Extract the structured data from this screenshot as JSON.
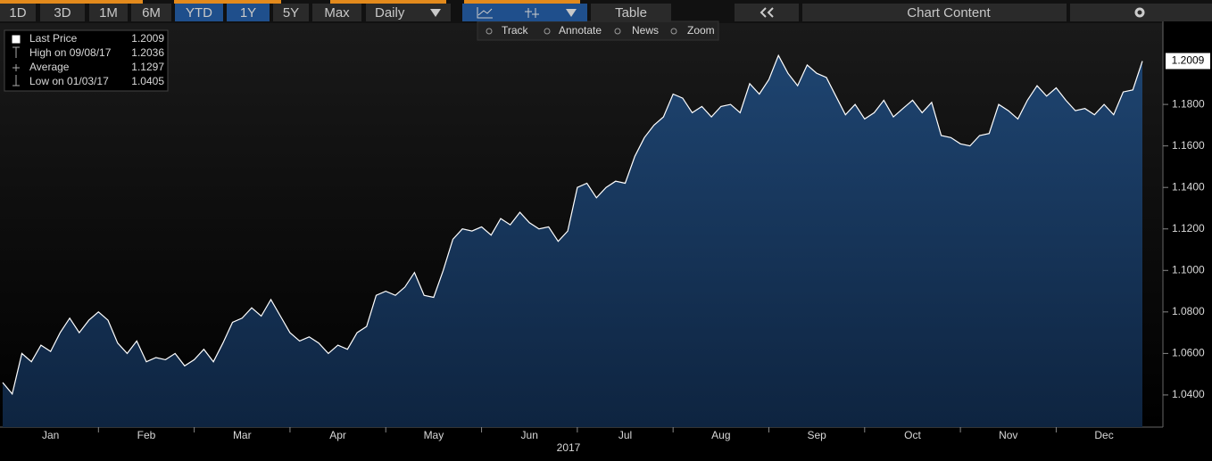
{
  "chart_data": {
    "type": "area",
    "toolbar": {
      "ranges": [
        "1D",
        "3D",
        "1M",
        "6M",
        "YTD",
        "1Y",
        "5Y",
        "Max"
      ],
      "frequency": "Daily",
      "table": "Table",
      "chart_content": "Chart Content"
    },
    "tools": [
      "Track",
      "Annotate",
      "News",
      "Zoom"
    ],
    "legend": [
      {
        "label": "Last Price",
        "value": 1.2009
      },
      {
        "label": "High on 09/08/17",
        "value": 1.2036
      },
      {
        "label": "Average",
        "value": 1.1297
      },
      {
        "label": "Low on 01/03/17",
        "value": 1.0405
      }
    ],
    "xlabel": "2017",
    "categories": [
      null,
      null,
      null,
      null,
      null,
      "Jan",
      null,
      null,
      null,
      null,
      null,
      null,
      null,
      null,
      null,
      "Feb",
      null,
      null,
      null,
      null,
      null,
      null,
      null,
      null,
      null,
      "Mar",
      null,
      null,
      null,
      null,
      null,
      null,
      null,
      null,
      null,
      "Apr",
      null,
      null,
      null,
      null,
      null,
      null,
      null,
      null,
      null,
      "May",
      null,
      null,
      null,
      null,
      null,
      null,
      null,
      null,
      null,
      "Jun",
      null,
      null,
      null,
      null,
      null,
      null,
      null,
      null,
      null,
      "Jul",
      null,
      null,
      null,
      null,
      null,
      null,
      null,
      null,
      null,
      "Aug",
      null,
      null,
      null,
      null,
      null,
      null,
      null,
      null,
      null,
      "Sep",
      null,
      null,
      null,
      null,
      null,
      null,
      null,
      null,
      null,
      "Oct",
      null,
      null,
      null,
      null,
      null,
      null,
      null,
      null,
      null,
      "Nov",
      null,
      null,
      null,
      null,
      null,
      null,
      null,
      null,
      null,
      "Dec",
      null,
      null,
      null,
      null
    ],
    "values": [
      1.046,
      1.0405,
      1.06,
      1.056,
      1.064,
      1.061,
      1.07,
      1.077,
      1.07,
      1.076,
      1.08,
      1.076,
      1.065,
      1.06,
      1.066,
      1.056,
      1.058,
      1.057,
      1.06,
      1.054,
      1.057,
      1.062,
      1.056,
      1.065,
      1.075,
      1.077,
      1.082,
      1.078,
      1.086,
      1.078,
      1.07,
      1.066,
      1.068,
      1.065,
      1.06,
      1.064,
      1.062,
      1.07,
      1.073,
      1.088,
      1.09,
      1.088,
      1.092,
      1.099,
      1.088,
      1.087,
      1.1,
      1.115,
      1.12,
      1.119,
      1.121,
      1.117,
      1.125,
      1.122,
      1.128,
      1.123,
      1.12,
      1.121,
      1.114,
      1.119,
      1.14,
      1.142,
      1.135,
      1.14,
      1.143,
      1.142,
      1.155,
      1.164,
      1.17,
      1.174,
      1.185,
      1.183,
      1.176,
      1.179,
      1.174,
      1.179,
      1.18,
      1.176,
      1.19,
      1.185,
      1.192,
      1.2036,
      1.195,
      1.189,
      1.199,
      1.195,
      1.193,
      1.184,
      1.175,
      1.18,
      1.173,
      1.176,
      1.182,
      1.174,
      1.178,
      1.182,
      1.176,
      1.181,
      1.165,
      1.164,
      1.161,
      1.16,
      1.165,
      1.166,
      1.18,
      1.177,
      1.173,
      1.182,
      1.189,
      1.184,
      1.188,
      1.182,
      1.177,
      1.178,
      1.175,
      1.18,
      1.175,
      1.186,
      1.187,
      1.2009
    ],
    "color": "#ffffff",
    "ylim": [
      1.0245,
      1.22
    ],
    "yticks": [
      {
        "value": 1.04,
        "label": "1.0400"
      },
      {
        "value": 1.06,
        "label": "1.0600"
      },
      {
        "value": 1.08,
        "label": "1.0800"
      },
      {
        "value": 1.1,
        "label": "1.1000"
      },
      {
        "value": 1.12,
        "label": "1.1200"
      },
      {
        "value": 1.14,
        "label": "1.1400"
      },
      {
        "value": 1.16,
        "label": "1.1600"
      },
      {
        "value": 1.18,
        "label": "1.1800"
      }
    ],
    "grid": false
  }
}
